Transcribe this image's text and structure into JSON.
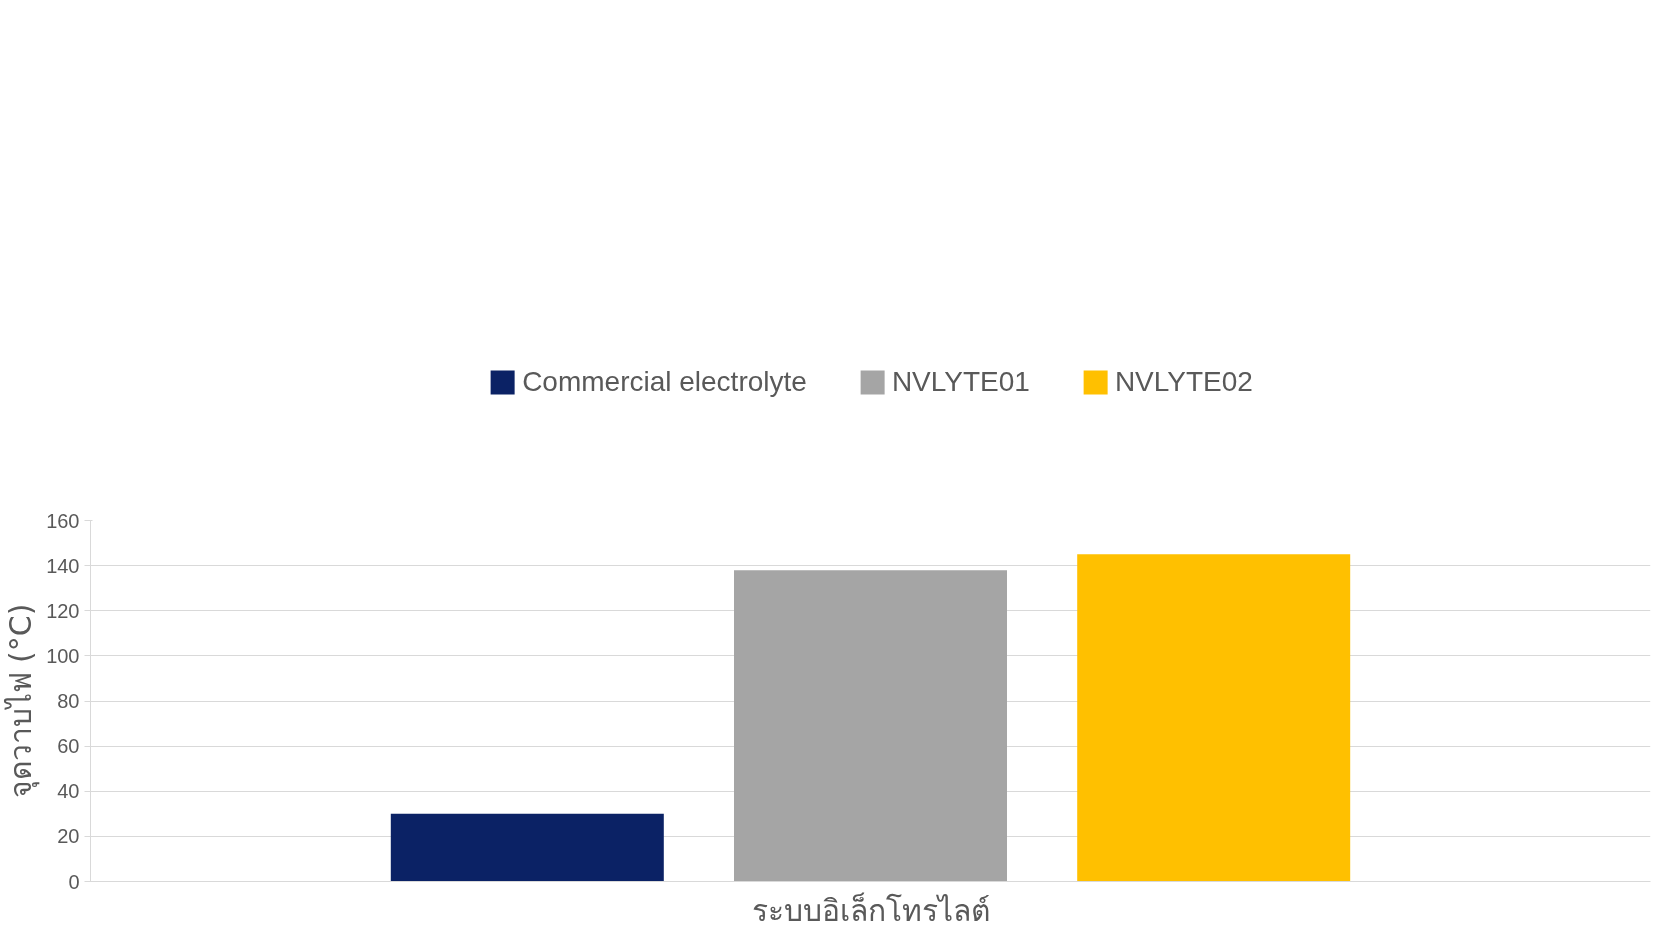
{
  "chart_data": {
    "type": "bar",
    "categories": [
      null
    ],
    "xlabel": "ระบบอิเล็กโทรไลต์",
    "ylabel": "จุดวาบไฟ (°C)",
    "series": [
      {
        "name": "Commercial electrolyte",
        "color": "#0b2265",
        "values": [
          30
        ]
      },
      {
        "name": "NVLYTE01",
        "color": "#a5a5a5",
        "values": [
          138
        ]
      },
      {
        "name": "NVLYTE02",
        "color": "#ffc000",
        "values": [
          145
        ]
      }
    ],
    "ylim": [
      0,
      160
    ],
    "yticks": [
      0,
      20,
      40,
      60,
      80,
      100,
      120,
      140,
      160
    ],
    "grid": "y",
    "legend": "top"
  }
}
